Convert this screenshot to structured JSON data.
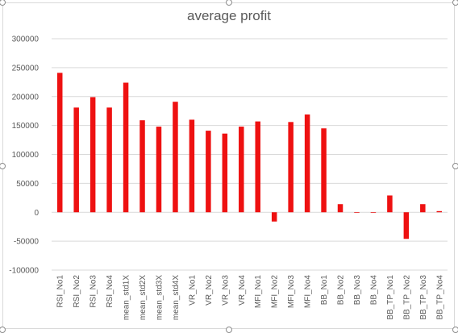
{
  "chart_data": {
    "type": "bar",
    "title": "average profit",
    "xlabel": "",
    "ylabel": "",
    "ylim": [
      -100000,
      300000
    ],
    "yticks": [
      300000,
      250000,
      200000,
      150000,
      100000,
      50000,
      0,
      -50000,
      -100000
    ],
    "ytick_labels": [
      "300000",
      "250000",
      "200000",
      "150000",
      "100000",
      "50000",
      "0",
      "-50000",
      "-100000"
    ],
    "grid": true,
    "legend": "none",
    "bar_color": "#ee1111",
    "categories": [
      "RSI_No1",
      "RSI_No2",
      "RSI_No3",
      "RSI_No4",
      "mean_std1X",
      "mean_std2X",
      "mean_std3X",
      "mean_std4X",
      "VR_No1",
      "VR_No2",
      "VR_No3",
      "VR_No4",
      "MFI_No1",
      "MFI_No2",
      "MFI_No3",
      "MFI_No4",
      "BB_No1",
      "BB_No2",
      "BB_No3",
      "BB_No4",
      "BB_TP_No1",
      "BB_TP_No2",
      "BB_TP_No3",
      "BB_TP_No4"
    ],
    "values": [
      241000,
      181000,
      199000,
      181000,
      224000,
      159000,
      148000,
      191000,
      160000,
      141000,
      136000,
      148000,
      157000,
      -16000,
      156000,
      169000,
      145000,
      14000,
      -1000,
      -1000,
      29000,
      -46000,
      14000,
      2000
    ]
  }
}
